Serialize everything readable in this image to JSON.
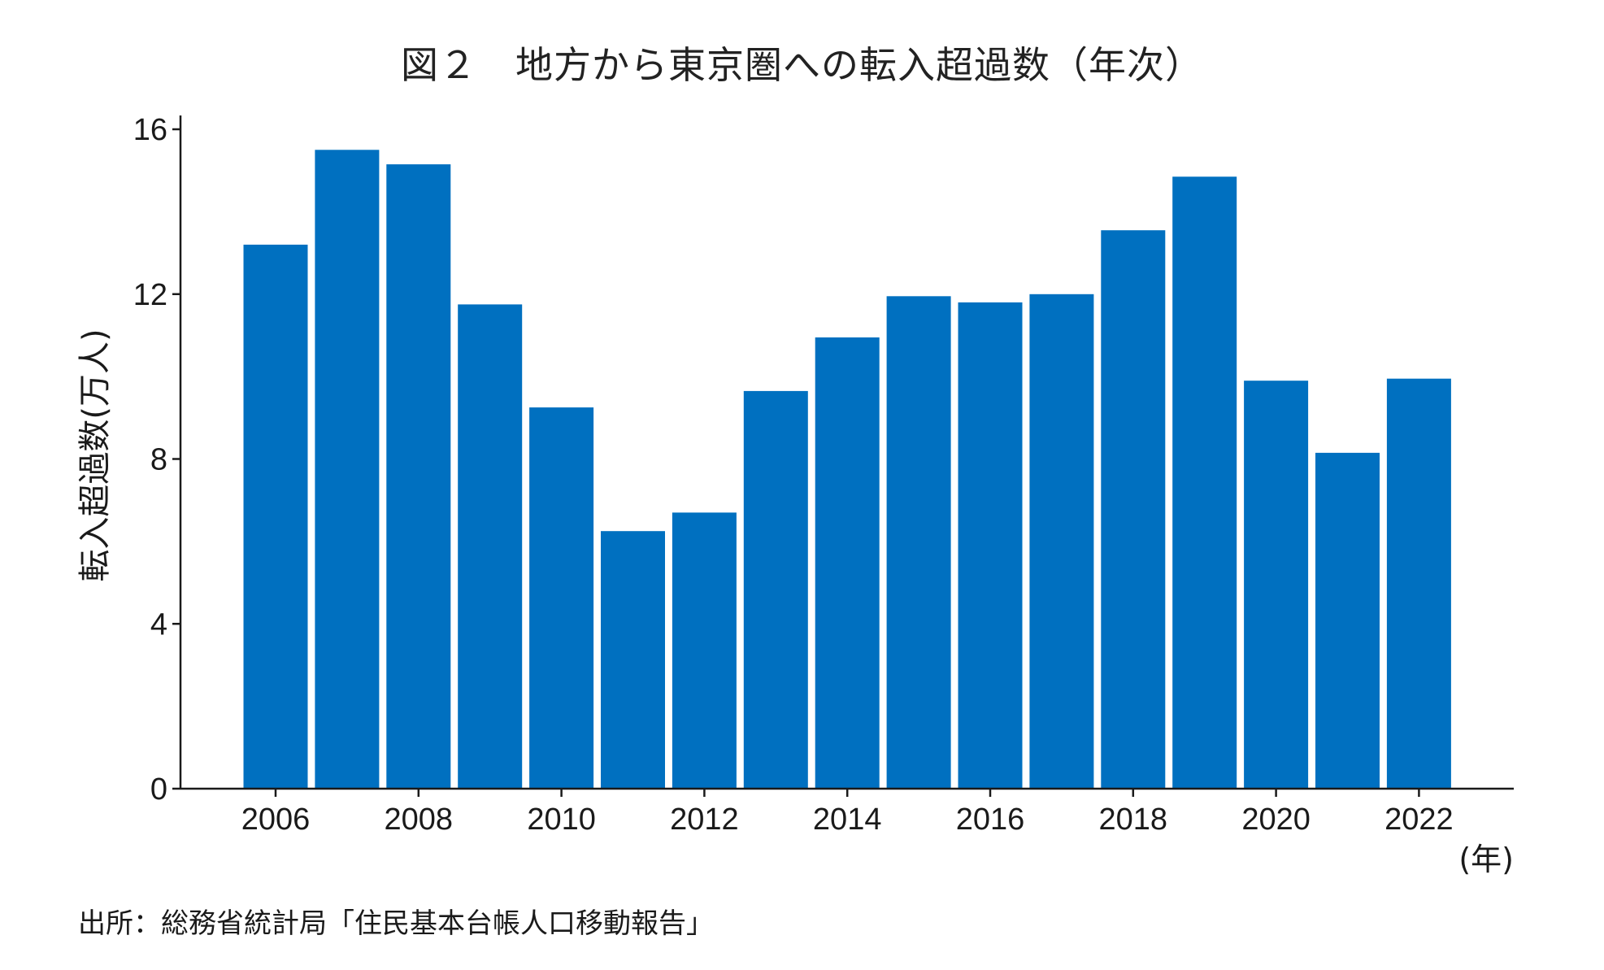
{
  "chart_data": {
    "type": "bar",
    "title": "図２　地方から東京圏への転入超過数（年次）",
    "ylabel": "転入超過数(万人)",
    "xunit": "(年)",
    "source": "出所：総務省統計局「住民基本台帳人口移動報告」",
    "categories": [
      "2006",
      "2007",
      "2008",
      "2009",
      "2010",
      "2011",
      "2012",
      "2013",
      "2014",
      "2015",
      "2016",
      "2017",
      "2018",
      "2019",
      "2020",
      "2021",
      "2022"
    ],
    "values": [
      13.2,
      15.5,
      15.15,
      11.75,
      9.25,
      6.25,
      6.7,
      9.65,
      10.95,
      11.95,
      11.8,
      12.0,
      13.55,
      14.85,
      9.9,
      8.15,
      9.95
    ],
    "xticks": [
      "2006",
      "2008",
      "2010",
      "2012",
      "2014",
      "2016",
      "2018",
      "2020",
      "2022"
    ],
    "yticks": [
      0,
      4,
      8,
      12,
      16
    ],
    "ylim": [
      0,
      16
    ],
    "grid": false,
    "legend": false,
    "bar_color": "#0070C0"
  }
}
